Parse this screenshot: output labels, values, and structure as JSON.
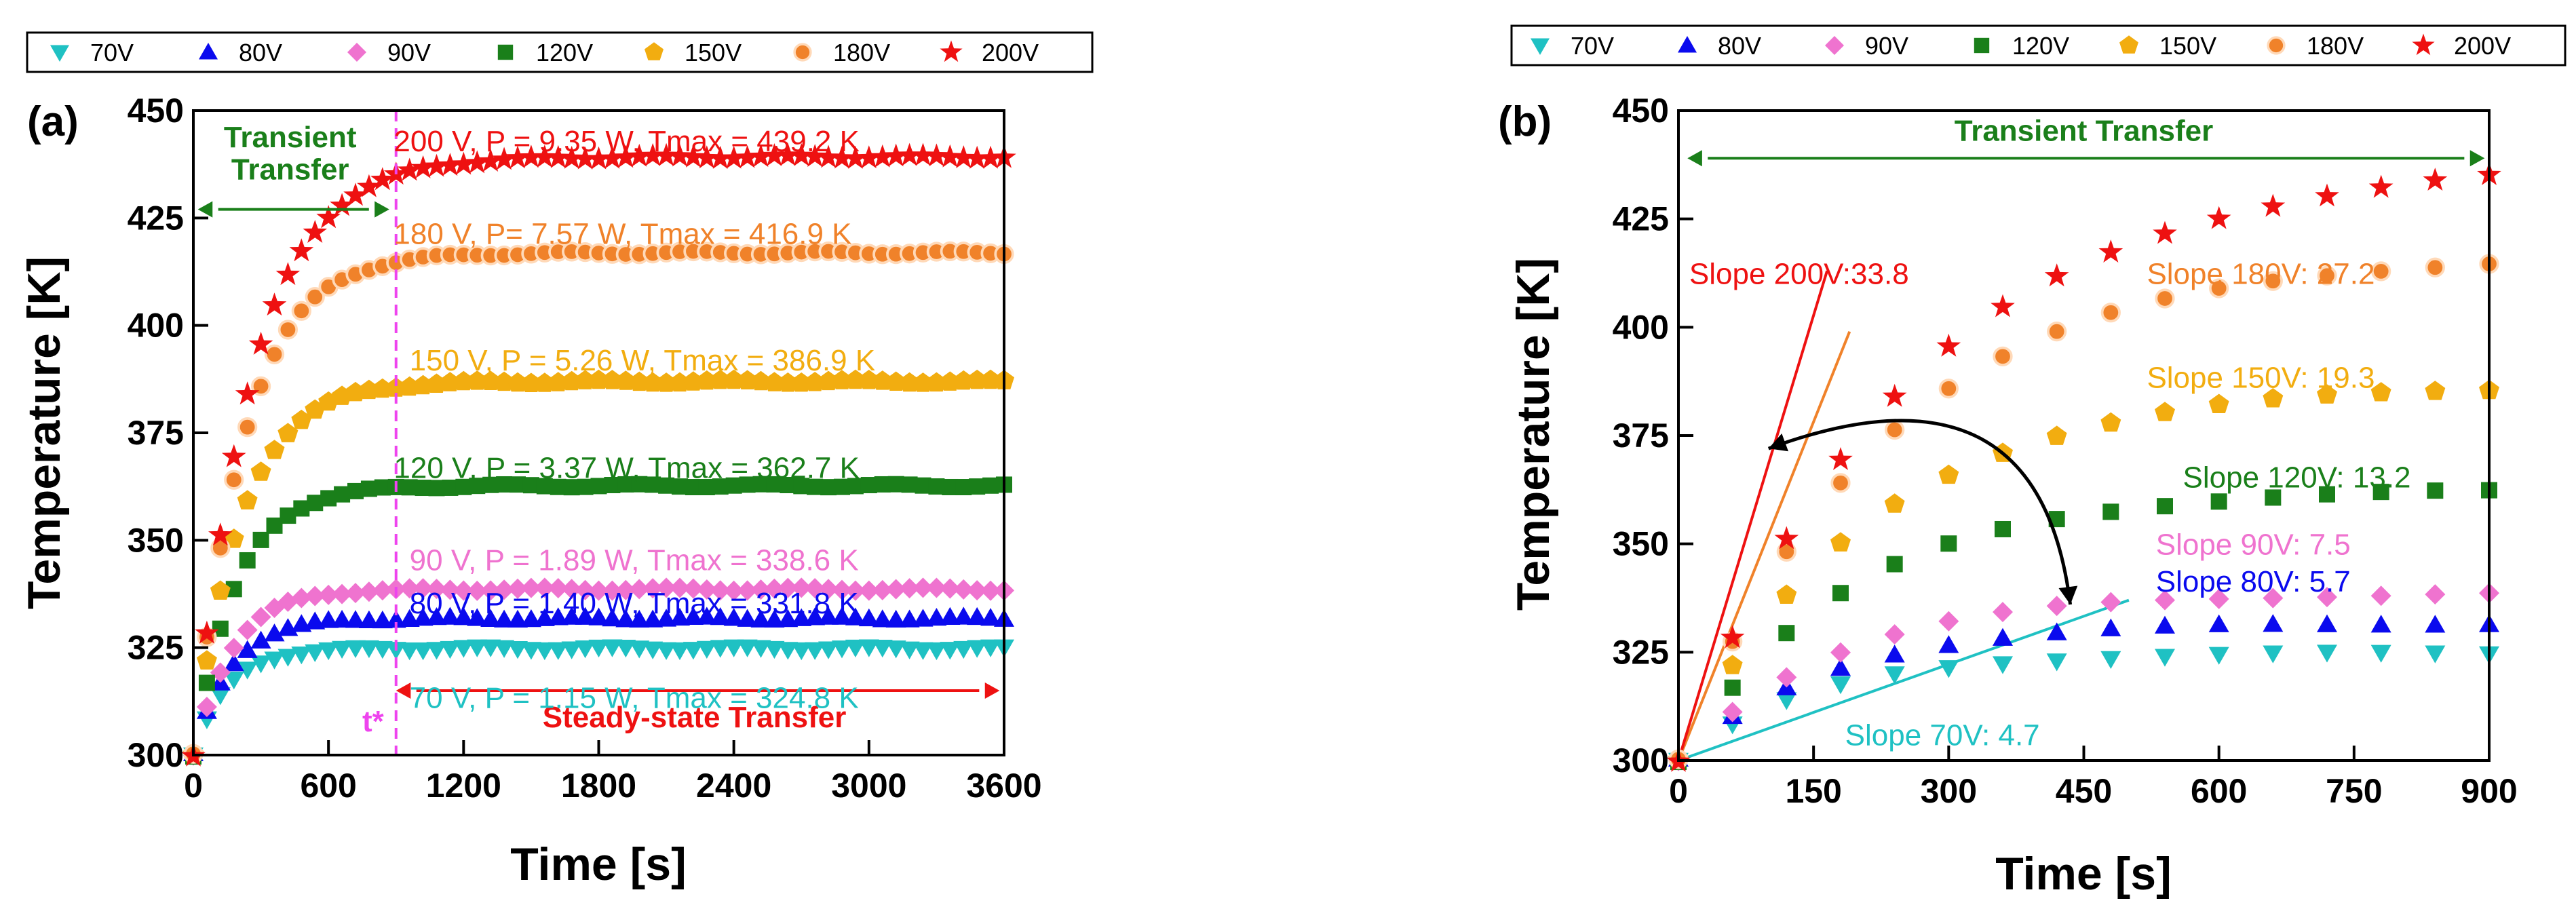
{
  "series_meta": [
    {
      "name": "70V",
      "color": "#1fc1c3",
      "marker": "tri-down"
    },
    {
      "name": "80V",
      "color": "#0a0aee",
      "marker": "tri-up"
    },
    {
      "name": "90V",
      "color": "#ef73cf",
      "marker": "diamond"
    },
    {
      "name": "120V",
      "color": "#1a7f1a",
      "marker": "square"
    },
    {
      "name": "150V",
      "color": "#f2ad10",
      "marker": "pentagon"
    },
    {
      "name": "180V",
      "color": "#f0822a",
      "marker": "circle"
    },
    {
      "name": "200V",
      "color": "#ee1111",
      "marker": "star"
    }
  ],
  "chart_data": [
    {
      "type": "scatter",
      "panel_label": "(a)",
      "title": "",
      "xlabel": "Time [s]",
      "ylabel": "Temperature [K]",
      "xlim": [
        0,
        3600
      ],
      "ylim": [
        300,
        450
      ],
      "xticks": [
        0,
        600,
        1200,
        1800,
        2400,
        3000,
        3600
      ],
      "yticks": [
        300,
        325,
        350,
        375,
        400,
        425,
        450
      ],
      "legend": {
        "position": "top",
        "entries": [
          "70V",
          "80V",
          "90V",
          "120V",
          "150V",
          "180V",
          "200V"
        ]
      },
      "model": {
        "x_step": 60,
        "x_max": 3600,
        "start": 300,
        "tau": [
          150,
          160,
          170,
          190,
          210,
          225,
          260
        ],
        "tmax": [
          324.8,
          331.8,
          338.6,
          362.7,
          386.9,
          416.9,
          439.2
        ]
      },
      "series": [
        {
          "name": "70V",
          "steady_value": 324.8
        },
        {
          "name": "80V",
          "steady_value": 331.8
        },
        {
          "name": "90V",
          "steady_value": 338.6
        },
        {
          "name": "120V",
          "steady_value": 362.7
        },
        {
          "name": "150V",
          "steady_value": 386.9
        },
        {
          "name": "180V",
          "steady_value": 416.9
        },
        {
          "name": "200V",
          "steady_value": 439.2
        }
      ],
      "annotations": {
        "labels": [
          {
            "text": "200 V, P = 9.35 W, Tmax = 439.2 K",
            "color": "#ee1111",
            "x": 890,
            "y": 440.5
          },
          {
            "text": "180 V, P= 7.57 W, Tmax = 416.9 K",
            "color": "#f0822a",
            "x": 890,
            "y": 419
          },
          {
            "text": "150 V, P = 5.26 W, Tmax = 386.9 K",
            "color": "#f2ad10",
            "x": 960,
            "y": 389.5
          },
          {
            "text": "120 V, P = 3.37 W, Tmax = 362.7 K",
            "color": "#1a7f1a",
            "x": 890,
            "y": 364.5
          },
          {
            "text": "90 V, P = 1.89 W, Tmax = 338.6 K",
            "color": "#ef73cf",
            "x": 960,
            "y": 343
          },
          {
            "text": "80 V, P = 1.40 W, Tmax = 331.8 K",
            "color": "#0a0aee",
            "x": 960,
            "y": 333
          },
          {
            "text": "70 V, P = 1.15 W, Tmax = 324.8 K",
            "color": "#1fc1c3",
            "x": 960,
            "y": 311
          }
        ],
        "transient_label_line1": "Transient",
        "transient_label_line2": "Transfer",
        "transient_color": "#1a7f1a",
        "transient_arrow": {
          "x1": 20,
          "x2": 870,
          "y": 427
        },
        "steady_label": "Steady-state Transfer",
        "steady_color": "#ee1111",
        "steady_arrow": {
          "x1": 900,
          "x2": 3580,
          "y": 315
        },
        "tstar_label": "t*",
        "tstar_x": 900,
        "tstar_color": "#ee44ee"
      }
    },
    {
      "type": "scatter",
      "panel_label": "(b)",
      "title": "",
      "xlabel": "Time [s]",
      "ylabel": "Temperature [K]",
      "xlim": [
        0,
        900
      ],
      "ylim": [
        300,
        450
      ],
      "xticks": [
        0,
        150,
        300,
        450,
        600,
        750,
        900
      ],
      "yticks": [
        300,
        325,
        350,
        375,
        400,
        425,
        450
      ],
      "legend": {
        "position": "top",
        "entries": [
          "70V",
          "80V",
          "90V",
          "120V",
          "150V",
          "180V",
          "200V"
        ]
      },
      "model": {
        "x_step": 60,
        "x_max": 900,
        "start": 300,
        "tau": [
          150,
          160,
          170,
          190,
          210,
          225,
          260
        ],
        "tmax": [
          324.8,
          331.8,
          338.6,
          362.7,
          386.9,
          416.9,
          439.2
        ]
      },
      "slopes": [
        {
          "name": "70V",
          "text": "Slope 70V: 4.7",
          "color": "#1fc1c3",
          "line": [
            0,
            300,
            500,
            337
          ],
          "label_x": 185,
          "label_y": 303.5
        },
        {
          "name": "80V",
          "text": "Slope 80V: 5.7",
          "color": "#0a0aee",
          "label_x": 530,
          "label_y": 339
        },
        {
          "name": "90V",
          "text": "Slope 90V: 7.5",
          "color": "#ef73cf",
          "label_x": 530,
          "label_y": 347.5
        },
        {
          "name": "120V",
          "text": "Slope 120V: 13.2",
          "color": "#1a7f1a",
          "label_x": 560,
          "label_y": 363
        },
        {
          "name": "150V",
          "text": "Slope 150V: 19.3",
          "color": "#f2ad10",
          "label_x": 520,
          "label_y": 386
        },
        {
          "name": "180V",
          "text": "Slope 180V: 27.2",
          "color": "#f0822a",
          "line": [
            0,
            300,
            190,
            399
          ],
          "label_x": 520,
          "label_y": 410
        },
        {
          "name": "200V",
          "text": "Slope 200V:33.8",
          "color": "#ee1111",
          "line": [
            0,
            300,
            165,
            413
          ],
          "label_x": 12,
          "label_y": 410
        }
      ],
      "annotations": {
        "transient_label": "Transient Transfer",
        "transient_color": "#1a7f1a",
        "transient_arrow": {
          "x1": 10,
          "x2": 895,
          "y": 439
        },
        "curve_arrow": {
          "from": [
            435,
            336
          ],
          "to": [
            100,
            372
          ],
          "ctrl": [
            400,
            395
          ]
        }
      }
    }
  ]
}
